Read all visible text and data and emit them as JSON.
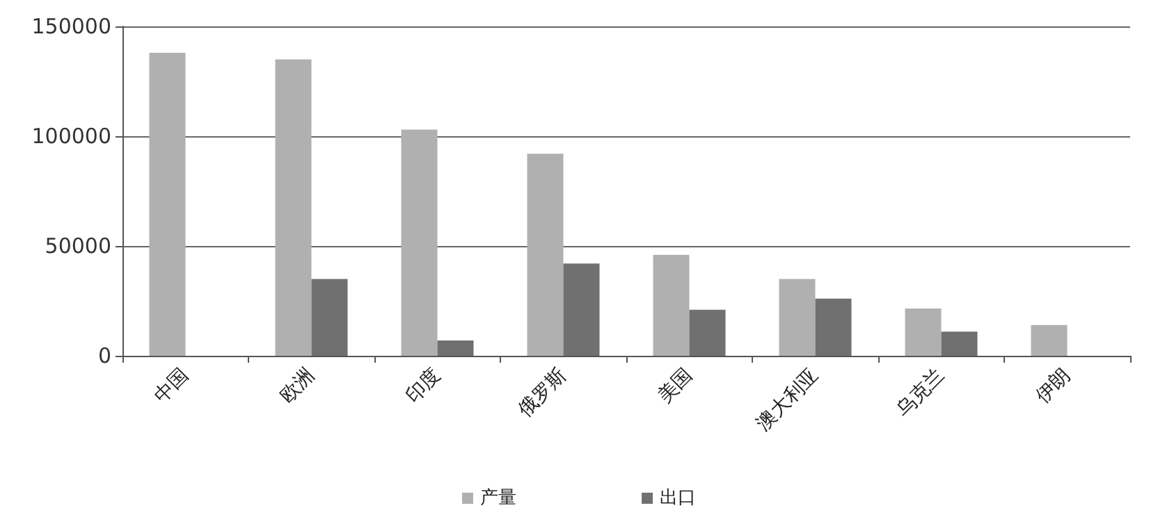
{
  "chart_data": {
    "type": "bar",
    "categories": [
      "中国",
      "欧洲",
      "印度",
      "俄罗斯",
      "美国",
      "澳大利亚",
      "乌克兰",
      "伊朗"
    ],
    "series": [
      {
        "name": "产量",
        "color": "#b0b0b0",
        "values": [
          138000,
          135000,
          103000,
          92000,
          46000,
          35000,
          21500,
          14000
        ]
      },
      {
        "name": "出口",
        "color": "#707070",
        "values": [
          null,
          35000,
          7000,
          42000,
          21000,
          26000,
          11000,
          null
        ]
      }
    ],
    "ylim": [
      0,
      150000
    ],
    "yticks": [
      0,
      50000,
      100000,
      150000
    ],
    "grid": "y",
    "legend": "bottom"
  }
}
